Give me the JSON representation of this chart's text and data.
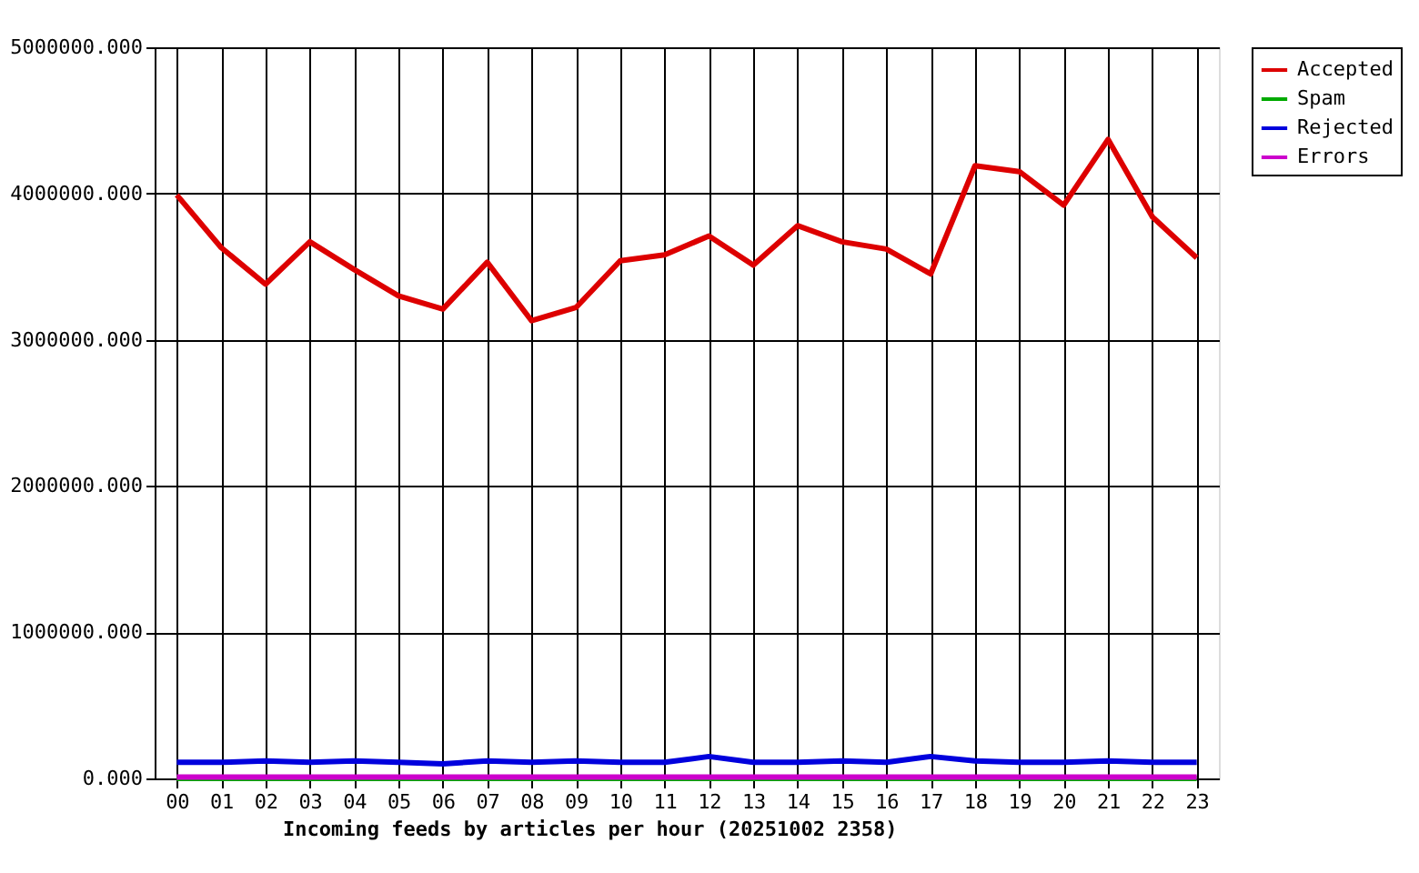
{
  "chart_data": {
    "type": "line",
    "xlabel": "Incoming feeds by articles per hour (20251002 2358)",
    "categories": [
      "00",
      "01",
      "02",
      "03",
      "04",
      "05",
      "06",
      "07",
      "08",
      "09",
      "10",
      "11",
      "12",
      "13",
      "14",
      "15",
      "16",
      "17",
      "18",
      "19",
      "20",
      "21",
      "22",
      "23"
    ],
    "series": [
      {
        "name": "Accepted",
        "color": "#dd0000",
        "values": [
          3990000,
          3630000,
          3380000,
          3670000,
          3480000,
          3300000,
          3210000,
          3530000,
          3130000,
          3220000,
          3540000,
          3580000,
          3710000,
          3510000,
          3780000,
          3670000,
          3620000,
          3450000,
          4190000,
          4150000,
          3920000,
          4370000,
          3840000,
          3560000
        ]
      },
      {
        "name": "Spam",
        "color": "#00aa00",
        "values": [
          0,
          0,
          0,
          0,
          0,
          0,
          0,
          0,
          0,
          0,
          0,
          0,
          0,
          0,
          0,
          0,
          0,
          0,
          0,
          0,
          0,
          0,
          0,
          0
        ]
      },
      {
        "name": "Rejected",
        "color": "#0000dd",
        "values": [
          110000,
          110000,
          120000,
          110000,
          120000,
          110000,
          100000,
          120000,
          110000,
          120000,
          110000,
          110000,
          150000,
          110000,
          110000,
          120000,
          110000,
          150000,
          120000,
          110000,
          110000,
          120000,
          110000,
          110000
        ]
      },
      {
        "name": "Errors",
        "color": "#cc00cc",
        "values": [
          10000,
          10000,
          10000,
          10000,
          10000,
          10000,
          10000,
          10000,
          10000,
          10000,
          10000,
          10000,
          10000,
          10000,
          10000,
          10000,
          10000,
          10000,
          10000,
          10000,
          10000,
          10000,
          10000,
          10000
        ]
      }
    ],
    "ylim": [
      0,
      5000000
    ],
    "yticks": [
      {
        "value": 0,
        "label": "0.000"
      },
      {
        "value": 1000000,
        "label": "1000000.000"
      },
      {
        "value": 2000000,
        "label": "2000000.000"
      },
      {
        "value": 3000000,
        "label": "3000000.000"
      },
      {
        "value": 4000000,
        "label": "4000000.000"
      },
      {
        "value": 5000000,
        "label": "5000000.000"
      }
    ],
    "grid": true,
    "legend": "top right",
    "marker": "none",
    "line_style": "solid"
  }
}
